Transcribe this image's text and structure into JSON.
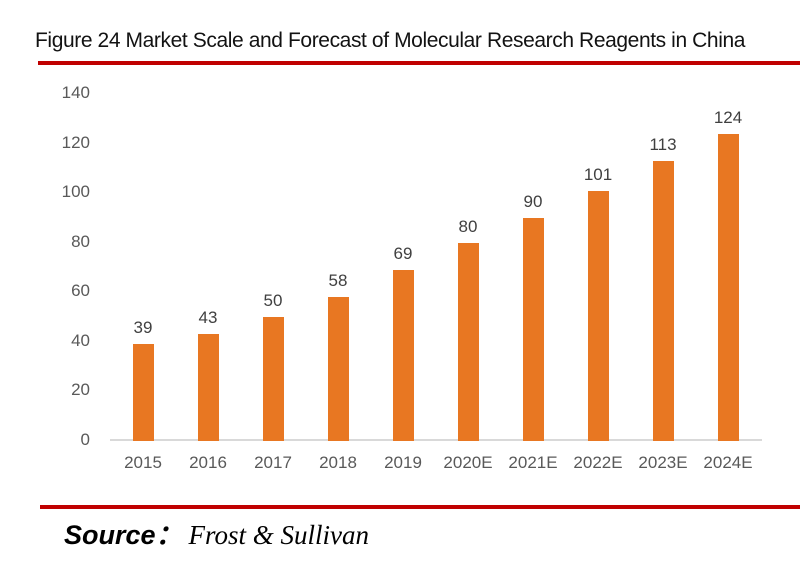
{
  "title": "Figure 24 Market Scale and Forecast of Molecular Research Reagents in China",
  "source": {
    "label": "Source：",
    "value": "Frost & Sullivan"
  },
  "colors": {
    "accent_red": "#c00000",
    "bar_orange": "#e87722",
    "axis_label_gray": "#595959",
    "value_label_gray": "#404040",
    "axis_line_gray": "#d9d9d9"
  },
  "chart_data": {
    "type": "bar",
    "categories": [
      "2015",
      "2016",
      "2017",
      "2018",
      "2019",
      "2020E",
      "2021E",
      "2022E",
      "2023E",
      "2024E"
    ],
    "values": [
      39,
      43,
      50,
      58,
      69,
      80,
      90,
      101,
      113,
      124
    ],
    "title": "Figure 24 Market Scale and Forecast of Molecular Research Reagents in China",
    "xlabel": "",
    "ylabel": "",
    "ylim": [
      0,
      140
    ],
    "yticks": [
      0,
      20,
      40,
      60,
      80,
      100,
      120,
      140
    ],
    "grid": false,
    "legend": false,
    "bar_color": "#e87722",
    "value_labels_shown": true
  }
}
